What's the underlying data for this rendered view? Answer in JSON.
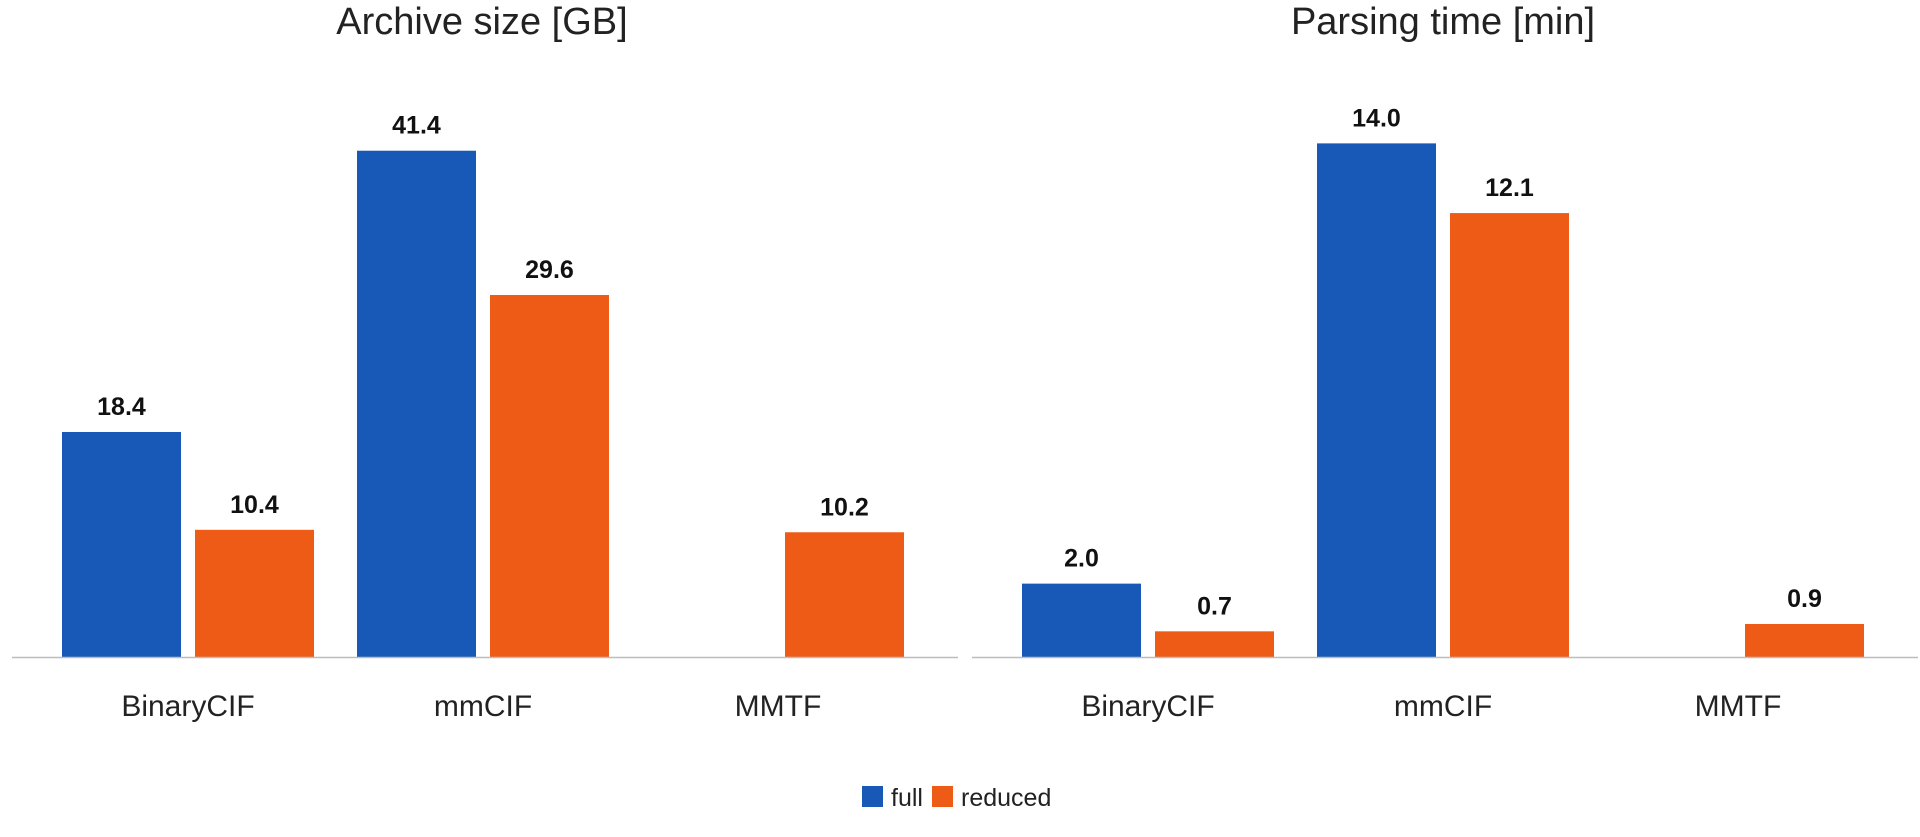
{
  "chart_data": [
    {
      "type": "bar",
      "title": "Archive size [GB]",
      "categories": [
        "BinaryCIF",
        "mmCIF",
        "MMTF"
      ],
      "series": [
        {
          "name": "full",
          "values": [
            18.4,
            41.4,
            null
          ]
        },
        {
          "name": "reduced",
          "values": [
            10.4,
            29.6,
            10.2
          ]
        }
      ],
      "ylim": [
        0,
        48
      ],
      "grid": false,
      "data_labels": true
    },
    {
      "type": "bar",
      "title": "Parsing time [min]",
      "categories": [
        "BinaryCIF",
        "mmCIF",
        "MMTF"
      ],
      "series": [
        {
          "name": "full",
          "values": [
            2.0,
            14.0,
            null
          ]
        },
        {
          "name": "reduced",
          "values": [
            0.7,
            12.1,
            0.9
          ]
        }
      ],
      "ylim": [
        0,
        16
      ],
      "grid": false,
      "data_labels": true
    }
  ],
  "colors": {
    "full": "#1859b7",
    "reduced": "#ee5b16",
    "axis": "#bdbdbd"
  },
  "legend": {
    "position": "bottom-center",
    "items": [
      "full",
      "reduced"
    ]
  }
}
